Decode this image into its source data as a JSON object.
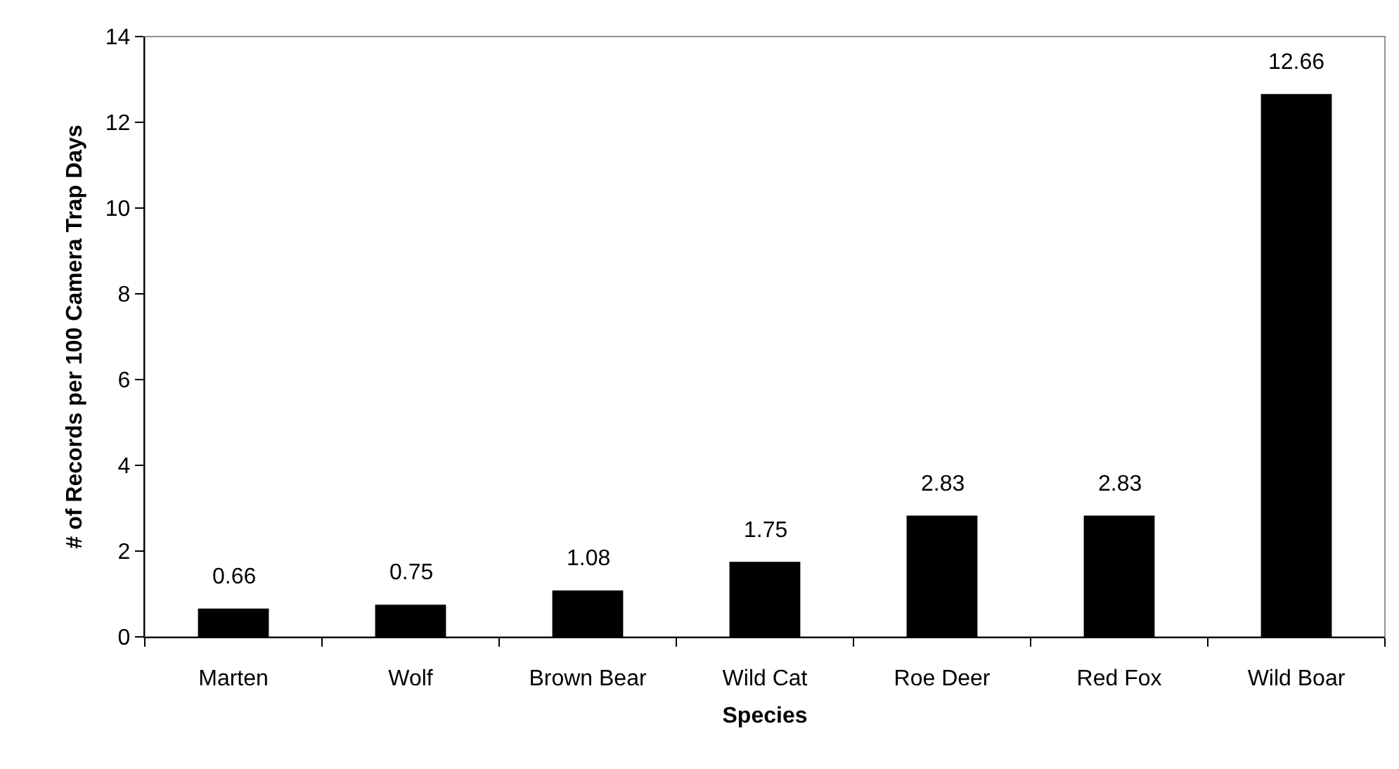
{
  "chart_data": {
    "type": "bar",
    "xlabel": "Species",
    "ylabel": "# of Records per 100 Camera Trap Days",
    "categories": [
      "Marten",
      "Wolf",
      "Brown Bear",
      "Wild Cat",
      "Roe Deer",
      "Red Fox",
      "Wild Boar"
    ],
    "values": [
      0.66,
      0.75,
      1.08,
      1.75,
      2.83,
      2.83,
      12.66
    ],
    "color": "#000000",
    "ylim": [
      0,
      14
    ],
    "yticks": [
      0,
      2,
      4,
      6,
      8,
      10,
      12,
      14
    ],
    "data_labels": true,
    "grid": false
  }
}
